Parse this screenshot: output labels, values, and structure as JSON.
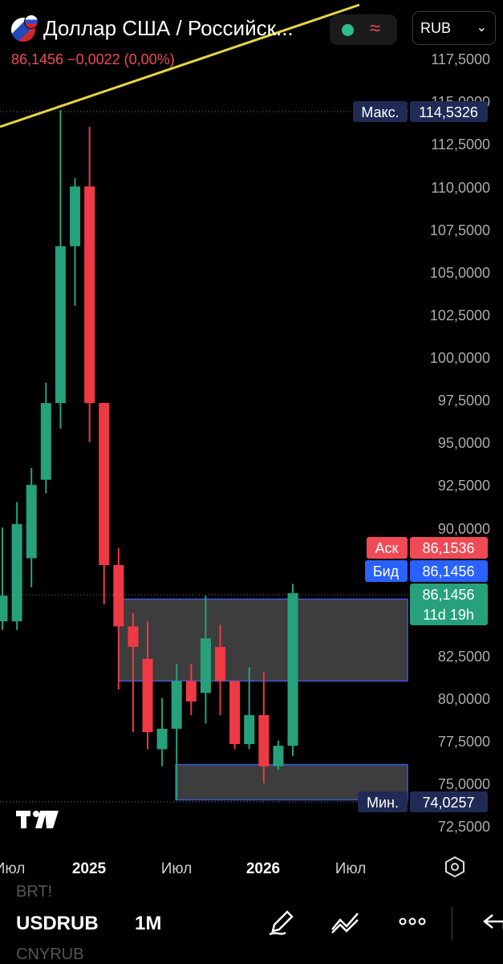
{
  "header": {
    "title": "Доллар США / Российск...",
    "price": "86,1456",
    "change": "−0,0022 (0,00%)",
    "currency": "RUB"
  },
  "price_axis": {
    "ticks": [
      "117,5000",
      "115,0000",
      "112,5000",
      "110,0000",
      "107,5000",
      "105,0000",
      "102,5000",
      "100,0000",
      "97,5000",
      "95,0000",
      "92,5000",
      "90,0000",
      "82,5000",
      "80,0000",
      "77,5000",
      "75,0000",
      "72,5000"
    ],
    "max_label": "Макс.",
    "max_value": "114,5326",
    "min_label": "Мин.",
    "min_value": "74,0257",
    "ask_label": "Аск",
    "ask_value": "86,1536",
    "bid_label": "Бид",
    "bid_value": "86,1456",
    "last_value": "86,1456",
    "countdown": "11d 19h"
  },
  "time_axis": {
    "labels": [
      "Июл",
      "2025",
      "Июл",
      "2026",
      "Июл"
    ]
  },
  "bottom_bar": {
    "symbol": "USDRUB",
    "interval": "1M",
    "prev_symbol": "BRT!",
    "next_symbol": "CNYRUB"
  },
  "colors": {
    "up": "#26a17b",
    "down": "#ef3945",
    "zone": "#3d3d3d",
    "zone_border": "#3a5bd9",
    "trendline": "#e6d545",
    "background": "#000000"
  },
  "chart_data": {
    "type": "candlestick",
    "interval": "1M",
    "candles": [
      {
        "o": 84.5,
        "h": 90.0,
        "l": 84.0,
        "c": 86.0
      },
      {
        "o": 84.5,
        "h": 91.5,
        "l": 84.0,
        "c": 90.2
      },
      {
        "o": 88.2,
        "h": 93.5,
        "l": 86.5,
        "c": 92.5
      },
      {
        "o": 92.8,
        "h": 98.5,
        "l": 92.0,
        "c": 97.3
      },
      {
        "o": 97.3,
        "h": 114.5,
        "l": 95.8,
        "c": 106.5
      },
      {
        "o": 106.5,
        "h": 110.5,
        "l": 103.0,
        "c": 110.0
      },
      {
        "o": 110.0,
        "h": 113.5,
        "l": 95.0,
        "c": 97.3
      },
      {
        "o": 97.3,
        "h": 97.3,
        "l": 85.5,
        "c": 87.8
      },
      {
        "o": 87.8,
        "h": 88.8,
        "l": 80.5,
        "c": 84.2
      },
      {
        "o": 84.2,
        "h": 85.0,
        "l": 78.0,
        "c": 83.0
      },
      {
        "o": 82.3,
        "h": 84.5,
        "l": 77.0,
        "c": 78.0
      },
      {
        "o": 77.0,
        "h": 80.0,
        "l": 76.0,
        "c": 78.2
      },
      {
        "o": 78.2,
        "h": 82.0,
        "l": 74.0,
        "c": 81.0
      },
      {
        "o": 81.0,
        "h": 82.0,
        "l": 79.0,
        "c": 79.8
      },
      {
        "o": 80.3,
        "h": 86.0,
        "l": 78.5,
        "c": 83.5
      },
      {
        "o": 83.0,
        "h": 84.3,
        "l": 79.0,
        "c": 81.0
      },
      {
        "o": 81.0,
        "h": 81.0,
        "l": 77.0,
        "c": 77.3
      },
      {
        "o": 77.3,
        "h": 81.8,
        "l": 77.0,
        "c": 79.0
      },
      {
        "o": 79.0,
        "h": 81.5,
        "l": 75.0,
        "c": 76.0
      },
      {
        "o": 76.0,
        "h": 77.5,
        "l": 75.8,
        "c": 77.2
      },
      {
        "o": 77.2,
        "h": 86.7,
        "l": 76.6,
        "c": 86.15
      }
    ],
    "zones": [
      {
        "from": 81.0,
        "to": 85.8
      },
      {
        "from": 74.03,
        "to": 76.1
      }
    ],
    "last_price": 86.1456,
    "ylim": [
      71.0,
      119.0
    ]
  }
}
